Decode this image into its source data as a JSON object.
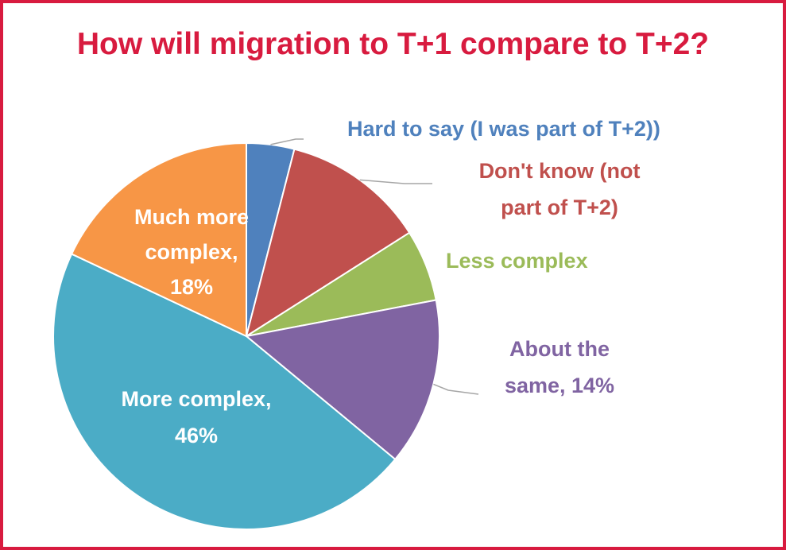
{
  "title": "How will migration to T+1 compare to T+2?",
  "chart_data": {
    "type": "pie",
    "title": "How will migration to T+1 compare to T+2?",
    "slices": [
      {
        "name": "Hard to say (I was part of T+2)",
        "value": 4,
        "color": "#4f81bd",
        "label_lines": [
          "Hard to say (I was part of T+2))"
        ],
        "label_position": "outside",
        "label_color": "#4f81bd"
      },
      {
        "name": "Don't know (not part of T+2)",
        "value": 12,
        "color": "#c0504d",
        "label_lines": [
          "Don't know (not",
          "part of T+2)"
        ],
        "label_position": "outside",
        "label_color": "#c0504d"
      },
      {
        "name": "Less complex",
        "value": 6,
        "color": "#9bbb59",
        "label_lines": [
          "Less complex"
        ],
        "label_position": "outside",
        "label_color": "#9bbb59"
      },
      {
        "name": "About the same",
        "value": 14,
        "color": "#8064a2",
        "label_lines": [
          "About the",
          "same, 14%"
        ],
        "label_position": "outside",
        "label_color": "#8064a2"
      },
      {
        "name": "More complex",
        "value": 46,
        "color": "#4bacc6",
        "label_lines": [
          "More complex,",
          "46%"
        ],
        "label_position": "inside",
        "label_color": "#ffffff"
      },
      {
        "name": "Much more complex",
        "value": 18,
        "color": "#f79646",
        "label_lines": [
          "Much more",
          "complex,",
          "18%"
        ],
        "label_position": "inside",
        "label_color": "#ffffff"
      }
    ],
    "legend": "none",
    "start_angle": "12 o'clock",
    "direction": "clockwise"
  }
}
